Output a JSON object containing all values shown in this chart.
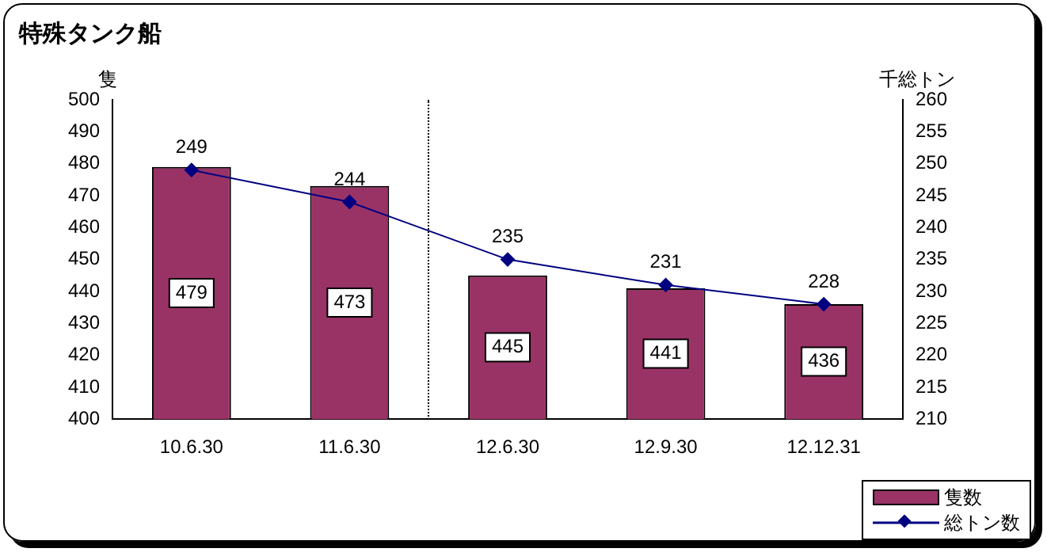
{
  "chart_data": {
    "type": "bar",
    "title": "特殊タンク船",
    "ylabel": "隻",
    "y2label": "千総トン",
    "categories": [
      "10.6.30",
      "11.6.30",
      "12.6.30",
      "12.9.30",
      "12.12.31"
    ],
    "series": [
      {
        "name": "隻数",
        "color": "#993366",
        "values": [
          479,
          473,
          445,
          441,
          436
        ]
      },
      {
        "name": "総トン数",
        "type": "line",
        "axis": "y2",
        "color": "#000080",
        "marker": "diamond",
        "values": [
          249,
          244,
          235,
          231,
          228
        ]
      }
    ],
    "ylim": [
      400,
      500
    ],
    "yticks": [
      400,
      410,
      420,
      430,
      440,
      450,
      460,
      470,
      480,
      490,
      500
    ],
    "y2lim": [
      210,
      260
    ],
    "y2ticks": [
      210,
      215,
      220,
      225,
      230,
      235,
      240,
      245,
      250,
      255,
      260
    ],
    "data_labels": true,
    "grid": false,
    "legend": "bottom right"
  }
}
